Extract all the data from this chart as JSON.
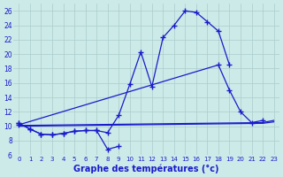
{
  "title": "Graphe des températures (°c)",
  "background_color": "#cceae7",
  "grid_color": "#aacccc",
  "line_color": "#1a1acc",
  "ylim": [
    6,
    27
  ],
  "yticks": [
    6,
    8,
    10,
    12,
    14,
    16,
    18,
    20,
    22,
    24,
    26
  ],
  "xlim": [
    -0.5,
    23.5
  ],
  "xticks": [
    0,
    1,
    2,
    3,
    4,
    5,
    6,
    7,
    8,
    9,
    10,
    11,
    12,
    13,
    14,
    15,
    16,
    17,
    18,
    19,
    20,
    21,
    22,
    23
  ],
  "line_main": {
    "x": [
      0,
      1,
      2,
      3,
      4,
      5,
      6,
      7,
      8,
      9,
      10,
      11,
      12,
      13,
      14,
      15,
      16,
      17,
      18,
      19
    ],
    "y": [
      10.4,
      9.6,
      8.9,
      8.8,
      9.0,
      9.3,
      9.4,
      9.4,
      9.1,
      11.5,
      15.8,
      20.3,
      15.5,
      22.3,
      24.0,
      26.0,
      25.8,
      24.5,
      23.2,
      18.5
    ]
  },
  "line_second": {
    "x": [
      0,
      18,
      19,
      20,
      21,
      22
    ],
    "y": [
      10.2,
      18.5,
      15.0,
      12.0,
      10.5,
      10.8
    ]
  },
  "line_flat1": {
    "x": [
      0,
      22,
      23
    ],
    "y": [
      10.1,
      10.5,
      10.8
    ]
  },
  "line_flat2": {
    "x": [
      0,
      22,
      23
    ],
    "y": [
      10.0,
      10.4,
      10.6
    ]
  },
  "line_dew": {
    "x": [
      0,
      1,
      2,
      3,
      4,
      5,
      6,
      7,
      8,
      9
    ],
    "y": [
      10.4,
      9.6,
      8.9,
      8.8,
      9.0,
      9.3,
      9.4,
      9.4,
      6.8,
      7.2
    ]
  }
}
